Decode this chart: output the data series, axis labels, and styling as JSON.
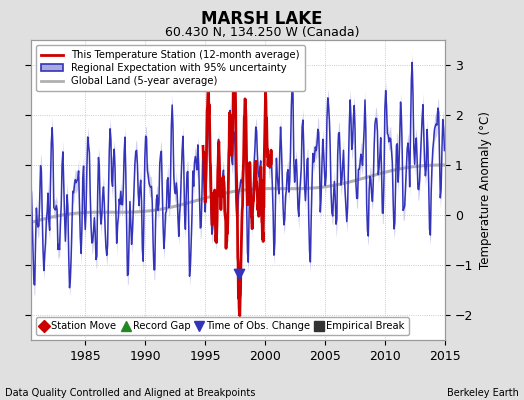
{
  "title": "MARSH LAKE",
  "subtitle": "60.430 N, 134.250 W (Canada)",
  "ylabel": "Temperature Anomaly (°C)",
  "xlabel_left": "Data Quality Controlled and Aligned at Breakpoints",
  "xlabel_right": "Berkeley Earth",
  "xlim": [
    1980.5,
    2015.0
  ],
  "ylim": [
    -2.5,
    3.5
  ],
  "yticks": [
    -2,
    -1,
    0,
    1,
    2,
    3
  ],
  "xticks": [
    1985,
    1990,
    1995,
    2000,
    2005,
    2010,
    2015
  ],
  "bg_color": "#e0e0e0",
  "plot_bg_color": "#ffffff",
  "legend1_items": [
    {
      "label": "This Temperature Station (12-month average)",
      "color": "#cc0000",
      "lw": 2.0
    },
    {
      "label": "Regional Expectation with 95% uncertainty",
      "color": "#3333bb",
      "lw": 1.5
    },
    {
      "label": "Global Land (5-year average)",
      "color": "#b0b0b0",
      "lw": 2.0
    }
  ],
  "legend2_items": [
    {
      "label": "Station Move",
      "marker": "D",
      "color": "#cc0000"
    },
    {
      "label": "Record Gap",
      "marker": "^",
      "color": "#228822"
    },
    {
      "label": "Time of Obs. Change",
      "marker": "v",
      "color": "#3333bb"
    },
    {
      "label": "Empirical Break",
      "marker": "s",
      "color": "#333333"
    }
  ],
  "grid_color": "#bbbbbb",
  "regional_fill_color": "#aaaadd",
  "regional_line_color": "#3333bb",
  "station_line_color": "#cc0000",
  "global_line_color": "#b0b0b0",
  "obs_change_x": 1997.8,
  "obs_change_y": -1.18
}
